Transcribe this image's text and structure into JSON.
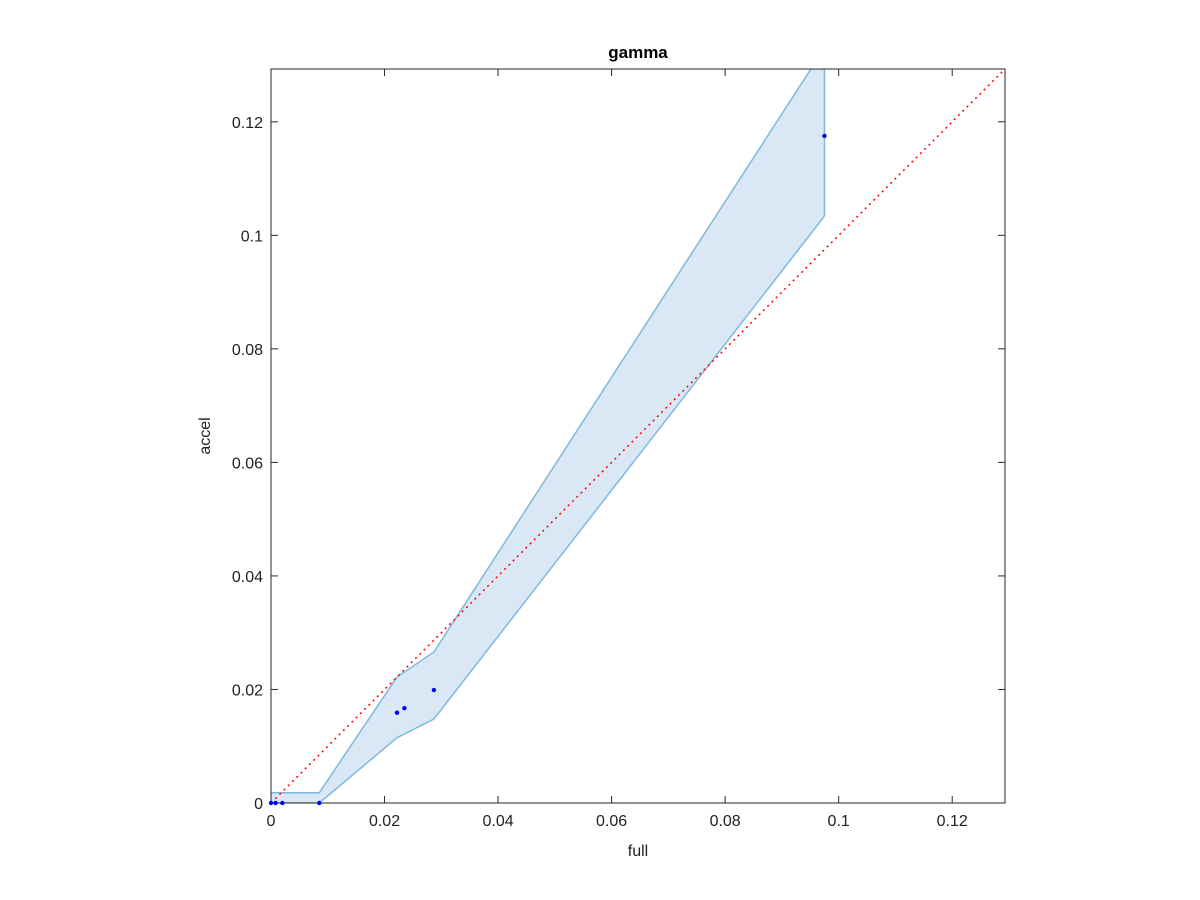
{
  "chart_data": {
    "type": "scatter",
    "title": "gamma",
    "x_label": "full",
    "y_label": "accel",
    "xlim": [
      0,
      0.1293
    ],
    "ylim": [
      0,
      0.1293
    ],
    "xticks": [
      0,
      0.02,
      0.04,
      0.06,
      0.08,
      0.1,
      0.12
    ],
    "yticks": [
      0,
      0.02,
      0.04,
      0.06,
      0.08,
      0.1,
      0.12
    ],
    "points": {
      "color": "#0000ff",
      "x": [
        0,
        0.0008,
        0.002,
        0.0085,
        0.0222,
        0.0235,
        0.0287,
        0.0975
      ],
      "values": [
        0,
        0,
        0,
        0,
        0.0159,
        0.0167,
        0.0199,
        0.1175
      ]
    },
    "band": {
      "color": "#7fb8dc",
      "fill": "#d9e8f4",
      "x": [
        0,
        0.0085,
        0.0222,
        0.0287,
        0.0975
      ],
      "upper": [
        0.0018,
        0.0018,
        0.0222,
        0.0266,
        0.133
      ],
      "lower": [
        0,
        0,
        0.0115,
        0.0148,
        0.1034
      ]
    },
    "reference_line": {
      "color": "#ff0000",
      "x": [
        0,
        0.1293
      ],
      "values": [
        0,
        0.1293
      ]
    }
  }
}
